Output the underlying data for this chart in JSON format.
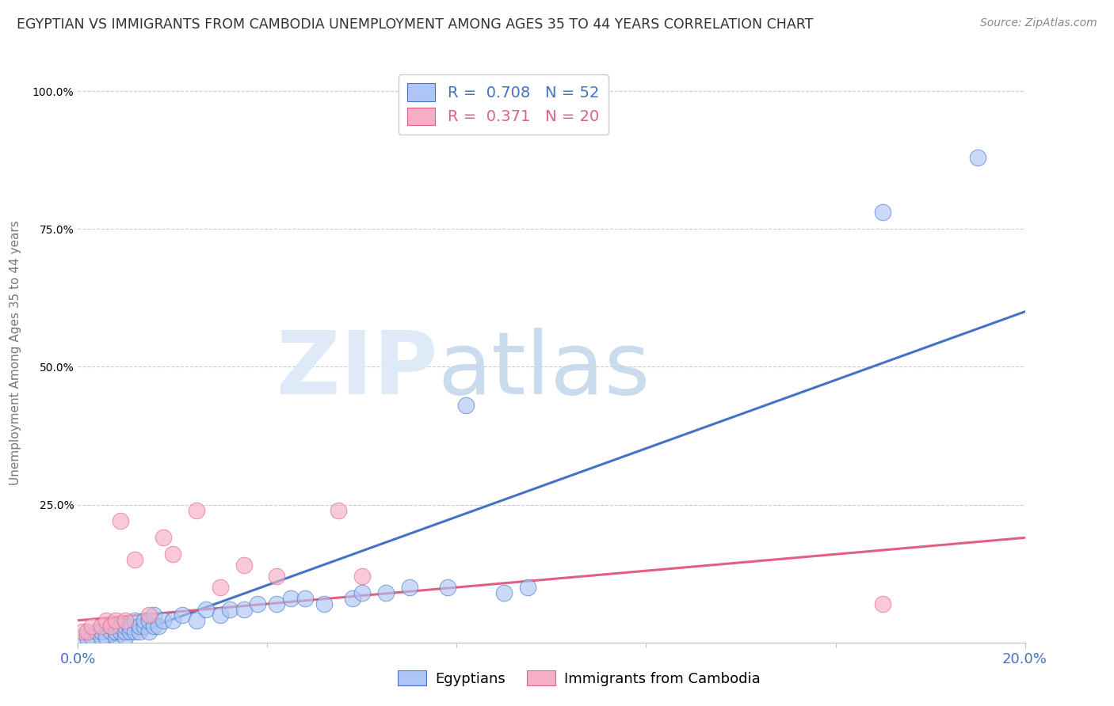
{
  "title": "EGYPTIAN VS IMMIGRANTS FROM CAMBODIA UNEMPLOYMENT AMONG AGES 35 TO 44 YEARS CORRELATION CHART",
  "source": "Source: ZipAtlas.com",
  "ylabel": "Unemployment Among Ages 35 to 44 years",
  "xlim": [
    0.0,
    0.2
  ],
  "ylim": [
    0.0,
    1.05
  ],
  "blue_R": 0.708,
  "blue_N": 52,
  "pink_R": 0.371,
  "pink_N": 20,
  "blue_color": "#aec6f5",
  "pink_color": "#f5aec6",
  "blue_line_color": "#4472c4",
  "pink_line_color": "#e06080",
  "watermark_zip_color": "#d8e4f5",
  "watermark_atlas_color": "#c8d8e8",
  "background_color": "#ffffff",
  "grid_color": "#cccccc",
  "title_color": "#333333",
  "axis_color": "#4472c4",
  "legend_box_color": "#4472c4",
  "blue_scatter_x": [
    0.001,
    0.002,
    0.003,
    0.004,
    0.005,
    0.005,
    0.006,
    0.007,
    0.007,
    0.008,
    0.008,
    0.009,
    0.009,
    0.01,
    0.01,
    0.01,
    0.011,
    0.011,
    0.012,
    0.012,
    0.013,
    0.013,
    0.014,
    0.014,
    0.015,
    0.015,
    0.016,
    0.016,
    0.017,
    0.018,
    0.02,
    0.022,
    0.025,
    0.027,
    0.03,
    0.032,
    0.035,
    0.038,
    0.042,
    0.045,
    0.048,
    0.052,
    0.058,
    0.06,
    0.065,
    0.07,
    0.078,
    0.082,
    0.09,
    0.095,
    0.17,
    0.19
  ],
  "blue_scatter_y": [
    0.01,
    0.01,
    0.01,
    0.02,
    0.01,
    0.02,
    0.01,
    0.02,
    0.03,
    0.01,
    0.02,
    0.02,
    0.03,
    0.01,
    0.02,
    0.03,
    0.02,
    0.03,
    0.02,
    0.04,
    0.02,
    0.03,
    0.03,
    0.04,
    0.02,
    0.04,
    0.03,
    0.05,
    0.03,
    0.04,
    0.04,
    0.05,
    0.04,
    0.06,
    0.05,
    0.06,
    0.06,
    0.07,
    0.07,
    0.08,
    0.08,
    0.07,
    0.08,
    0.09,
    0.09,
    0.1,
    0.1,
    0.43,
    0.09,
    0.1,
    0.78,
    0.88
  ],
  "pink_scatter_x": [
    0.001,
    0.002,
    0.003,
    0.005,
    0.006,
    0.007,
    0.008,
    0.009,
    0.01,
    0.012,
    0.015,
    0.018,
    0.02,
    0.025,
    0.03,
    0.035,
    0.042,
    0.055,
    0.06,
    0.17
  ],
  "pink_scatter_y": [
    0.02,
    0.02,
    0.03,
    0.03,
    0.04,
    0.03,
    0.04,
    0.22,
    0.04,
    0.15,
    0.05,
    0.19,
    0.16,
    0.24,
    0.1,
    0.14,
    0.12,
    0.24,
    0.12,
    0.07
  ],
  "blue_line_x": [
    0.0,
    0.2
  ],
  "blue_line_y": [
    -0.02,
    0.6
  ],
  "pink_line_x": [
    0.0,
    0.2
  ],
  "pink_line_y": [
    0.04,
    0.19
  ]
}
